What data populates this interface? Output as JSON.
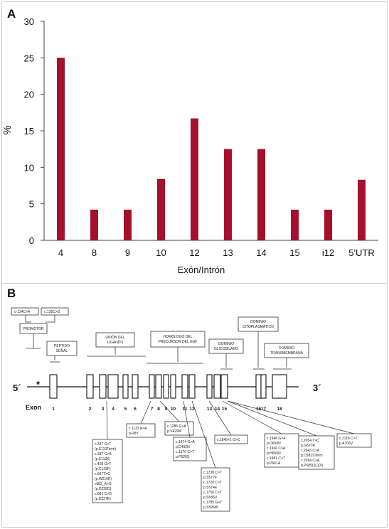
{
  "panel_a": {
    "letter": "A"
  },
  "panel_b": {
    "letter": "B",
    "five_prime": "5´",
    "three_prime": "3´",
    "exon_label": "Exon",
    "asterisk": "*",
    "exon_numbers": [
      "1",
      "2",
      "3",
      "4",
      "5",
      "6",
      "7",
      "8",
      "9",
      "10",
      "11",
      "12",
      "13",
      "14",
      "15",
      "16",
      "17",
      "18"
    ],
    "domains": {
      "promotor": "PROMOTOR",
      "signal_peptide": [
        "PÉPTIDO",
        "SEÑAL"
      ],
      "ligand_binding": [
        "UNIÓN DEL",
        "LIGANDO"
      ],
      "egf_homology": [
        "HOMÓLOGO DEL",
        "PRECURSOR DEL EGF"
      ],
      "glycosylated": [
        "DOMINIO",
        "GLICOSILADO"
      ],
      "cytoplasmic": [
        "DOMINIO",
        "CITOPLASMÁTICO"
      ],
      "transmembrane": [
        "DOMINIO",
        "TRANSMEMBRANA"
      ]
    },
    "promoter_mutations": [
      "c-134C>A",
      "c.135C>G"
    ],
    "mutation_boxes": [
      {
        "lines": [
          "c.1133 A>A",
          "p.R8Y"
        ]
      },
      {
        "lines": [
          "c.1285 G>A",
          "p.V429M"
        ]
      },
      {
        "lines": [
          "c.1474 G>A",
          "p.D492N",
          "c.1576 C>T",
          "p.P526S"
        ]
      },
      {
        "lines": [
          "c.1845+1 G>C"
        ]
      },
      {
        "lines": [
          "c.1948 G>A",
          "p.D650N",
          "c.1966 C>A",
          "p.H656N",
          "c.1981 C>T",
          "p.P661A"
        ]
      },
      {
        "lines": [
          "c.2054 T>C",
          "p.G677R",
          "c.2043 C>A",
          "p.C681STerm",
          "c.2054 C>A",
          "p.P685L(L)(X)"
        ]
      },
      {
        "lines": [
          "c.2118 C>T",
          "p.A706V"
        ]
      },
      {
        "lines": [
          "c.337 G>T",
          "(p.E113Term)",
          "c.337 G>A",
          "(p.E113K)",
          "c.428 G>T",
          "(p.C143F)",
          "c.647T>C",
          "(p.W216R)",
          "c682_A>G",
          "(p.D228G)",
          "c.681 C>G",
          "(p.D227E)"
        ]
      },
      {
        "lines": [
          "c.1730 C>T",
          "p.S577F",
          "c.1720 C>T",
          "p.S574E",
          "c.1756 C>T",
          "p.S586V",
          "c.1785 G>T",
          "p.S595W"
        ]
      }
    ]
  },
  "chart_data": {
    "type": "bar",
    "title": "",
    "xlabel": "Exón/Intrón",
    "ylabel": "%",
    "ylim": [
      0,
      30
    ],
    "yticks": [
      0,
      5,
      10,
      15,
      20,
      25,
      30
    ],
    "categories": [
      "4",
      "8",
      "9",
      "10",
      "12",
      "13",
      "14",
      "15",
      "i12",
      "5'UTR"
    ],
    "values": [
      25,
      4.2,
      4.2,
      8.4,
      16.7,
      12.5,
      12.5,
      4.2,
      4.2,
      8.3
    ],
    "bar_color": "#a5102c",
    "grid": false
  }
}
